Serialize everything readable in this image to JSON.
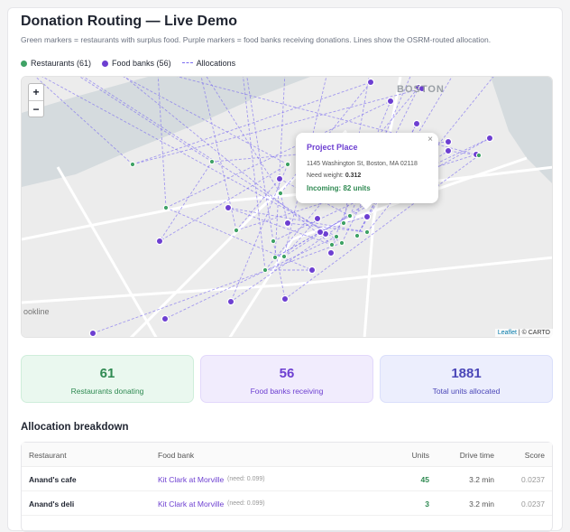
{
  "header": {
    "title": "Donation Routing — Live Demo",
    "subtitle": "Green markers = restaurants with surplus food. Purple markers = food banks receiving donations. Lines show the OSRM-routed allocation."
  },
  "legend": {
    "restaurants": "Restaurants (61)",
    "food_banks": "Food banks (56)",
    "allocations": "Allocations"
  },
  "map": {
    "zoom_in": "+",
    "zoom_out": "−",
    "labels": [
      "BOSTON",
      "ookline"
    ],
    "attribution": {
      "leaflet": "Leaflet",
      "carto": "| © CARTO"
    },
    "popup": {
      "title": "Project Place",
      "address": "1145 Washington St, Boston, MA 02118",
      "need_label": "Need weight:",
      "need_value": "0.312",
      "incoming": "Incoming: 82 units",
      "close": "×"
    }
  },
  "stats": [
    {
      "value": "61",
      "label": "Restaurants donating"
    },
    {
      "value": "56",
      "label": "Food banks receiving"
    },
    {
      "value": "1881",
      "label": "Total units allocated"
    }
  ],
  "breakdown": {
    "title": "Allocation breakdown",
    "columns": [
      "Restaurant",
      "Food bank",
      "Units",
      "Drive time",
      "Score"
    ],
    "rows": [
      [
        "Anand's cafe",
        "Kit Clark at Morville",
        "(need: 0.099)",
        "45",
        "3.2 min",
        "0.0237"
      ],
      [
        "Anand's deli",
        "Kit Clark at Morville",
        "(need: 0.099)",
        "3",
        "3.2 min",
        "0.0237"
      ]
    ]
  }
}
